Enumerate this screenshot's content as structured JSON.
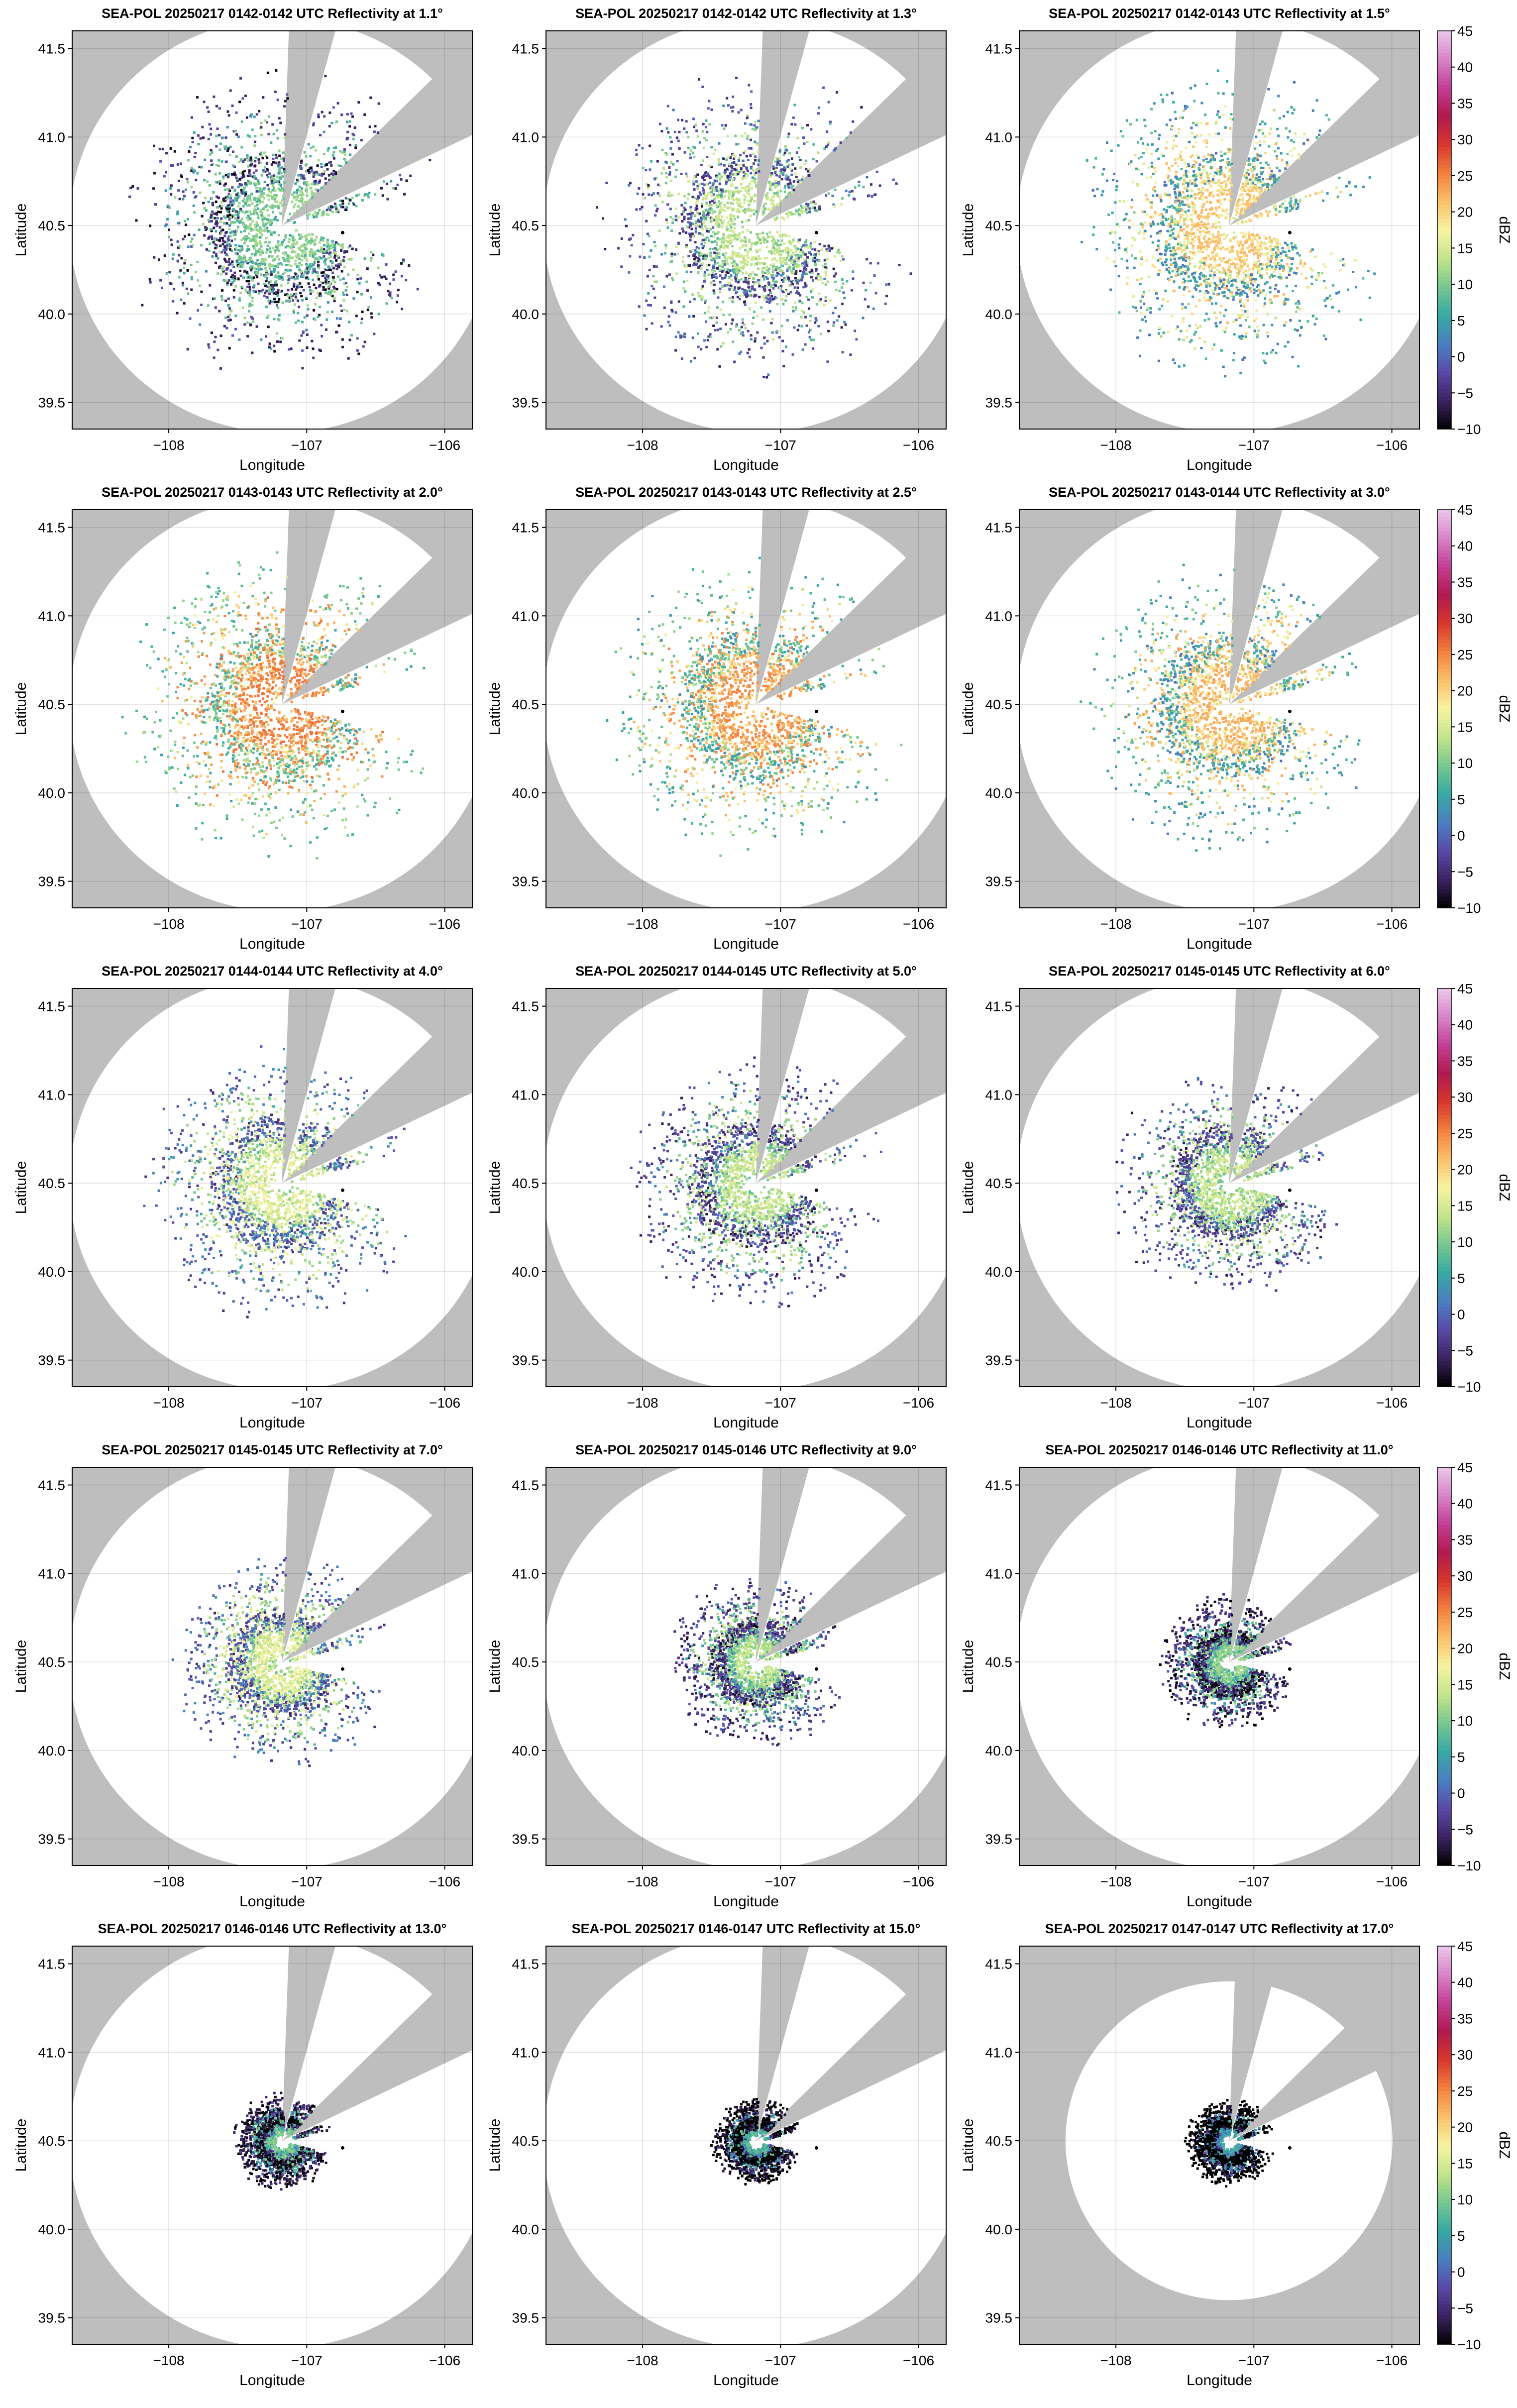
{
  "figure": {
    "colorbar_label": "dBZ",
    "colormap": [
      "#000000",
      "#3d2364",
      "#5a4aa8",
      "#4a7fc0",
      "#38a9a4",
      "#76c78f",
      "#c4e58a",
      "#f7f3a3",
      "#fbc06a",
      "#f2803f",
      "#d8362c",
      "#b01a4f",
      "#c23f95",
      "#d884c7",
      "#ecc7ec"
    ],
    "outside_range_color": "#bebebe",
    "radar_site": {
      "lon": -107.18,
      "lat": 40.5
    },
    "marker": {
      "lon": -106.74,
      "lat": 40.46
    }
  },
  "chart_data": [
    {
      "type": "heatmap",
      "title": "SEA-POL 20250217 0142-0142 UTC Reflectivity at 1.1°",
      "xlabel": "Longitude",
      "ylabel": "Latitude",
      "xlim": [
        -108.7,
        -105.8
      ],
      "ylim": [
        39.35,
        41.6
      ],
      "xticks": [
        "−108",
        "−107",
        "−106"
      ],
      "yticks": [
        "39.5",
        "40.0",
        "40.5",
        "41.0",
        "41.5"
      ],
      "colorbar": false,
      "range_km": 130,
      "blocked_sectors_deg": [
        [
          2,
          15
        ],
        [
          45,
          64
        ]
      ],
      "max_dbz": 12
    },
    {
      "type": "heatmap",
      "title": "SEA-POL 20250217 0142-0142 UTC Reflectivity at 1.3°",
      "xlabel": "Longitude",
      "ylabel": "Latitude",
      "xlim": [
        -108.7,
        -105.8
      ],
      "ylim": [
        39.35,
        41.6
      ],
      "xticks": [
        "−108",
        "−107",
        "−106"
      ],
      "yticks": [
        "39.5",
        "40.0",
        "40.5",
        "41.0",
        "41.5"
      ],
      "colorbar": false,
      "range_km": 130,
      "blocked_sectors_deg": [
        [
          2,
          15
        ],
        [
          45,
          64
        ]
      ],
      "max_dbz": 15
    },
    {
      "type": "heatmap",
      "title": "SEA-POL 20250217 0142-0143 UTC Reflectivity at 1.5°",
      "xlabel": "Longitude",
      "ylabel": "Latitude",
      "xlim": [
        -108.7,
        -105.8
      ],
      "ylim": [
        39.35,
        41.6
      ],
      "xticks": [
        "−108",
        "−107",
        "−106"
      ],
      "yticks": [
        "39.5",
        "40.0",
        "40.5",
        "41.0",
        "41.5"
      ],
      "colorbar": true,
      "colorbar_ticks": [
        45,
        40,
        35,
        30,
        25,
        20,
        15,
        10,
        5,
        0,
        -5,
        -10
      ],
      "range_km": 130,
      "blocked_sectors_deg": [
        [
          2,
          15
        ],
        [
          45,
          64
        ]
      ],
      "max_dbz": 22
    },
    {
      "type": "heatmap",
      "title": "SEA-POL 20250217 0143-0143 UTC Reflectivity at 2.0°",
      "xlabel": "Longitude",
      "ylabel": "Latitude",
      "xlim": [
        -108.7,
        -105.8
      ],
      "ylim": [
        39.35,
        41.6
      ],
      "xticks": [
        "−108",
        "−107",
        "−106"
      ],
      "yticks": [
        "39.5",
        "40.0",
        "40.5",
        "41.0",
        "41.5"
      ],
      "colorbar": false,
      "range_km": 130,
      "blocked_sectors_deg": [
        [
          2,
          15
        ],
        [
          45,
          64
        ]
      ],
      "max_dbz": 26
    },
    {
      "type": "heatmap",
      "title": "SEA-POL 20250217 0143-0143 UTC Reflectivity at 2.5°",
      "xlabel": "Longitude",
      "ylabel": "Latitude",
      "xlim": [
        -108.7,
        -105.8
      ],
      "ylim": [
        39.35,
        41.6
      ],
      "xticks": [
        "−108",
        "−107",
        "−106"
      ],
      "yticks": [
        "39.5",
        "40.0",
        "40.5",
        "41.0",
        "41.5"
      ],
      "colorbar": false,
      "range_km": 130,
      "blocked_sectors_deg": [
        [
          2,
          15
        ],
        [
          45,
          64
        ]
      ],
      "max_dbz": 25
    },
    {
      "type": "heatmap",
      "title": "SEA-POL 20250217 0143-0144 UTC Reflectivity at 3.0°",
      "xlabel": "Longitude",
      "ylabel": "Latitude",
      "xlim": [
        -108.7,
        -105.8
      ],
      "ylim": [
        39.35,
        41.6
      ],
      "xticks": [
        "−108",
        "−107",
        "−106"
      ],
      "yticks": [
        "39.5",
        "40.0",
        "40.5",
        "41.0",
        "41.5"
      ],
      "colorbar": true,
      "colorbar_ticks": [
        45,
        40,
        35,
        30,
        25,
        20,
        15,
        10,
        5,
        0,
        -5,
        -10
      ],
      "range_km": 130,
      "blocked_sectors_deg": [
        [
          2,
          15
        ],
        [
          45,
          64
        ]
      ],
      "max_dbz": 23
    },
    {
      "type": "heatmap",
      "title": "SEA-POL 20250217 0144-0144 UTC Reflectivity at 4.0°",
      "xlabel": "Longitude",
      "ylabel": "Latitude",
      "xlim": [
        -108.7,
        -105.8
      ],
      "ylim": [
        39.35,
        41.6
      ],
      "xticks": [
        "−108",
        "−107",
        "−106"
      ],
      "yticks": [
        "39.5",
        "40.0",
        "40.5",
        "41.0",
        "41.5"
      ],
      "colorbar": false,
      "range_km": 130,
      "blocked_sectors_deg": [
        [
          2,
          15
        ],
        [
          45,
          64
        ]
      ],
      "max_dbz": 17
    },
    {
      "type": "heatmap",
      "title": "SEA-POL 20250217 0144-0145 UTC Reflectivity at 5.0°",
      "xlabel": "Longitude",
      "ylabel": "Latitude",
      "xlim": [
        -108.7,
        -105.8
      ],
      "ylim": [
        39.35,
        41.6
      ],
      "xticks": [
        "−108",
        "−107",
        "−106"
      ],
      "yticks": [
        "39.5",
        "40.0",
        "40.5",
        "41.0",
        "41.5"
      ],
      "colorbar": false,
      "range_km": 130,
      "blocked_sectors_deg": [
        [
          2,
          15
        ],
        [
          45,
          64
        ]
      ],
      "max_dbz": 15
    },
    {
      "type": "heatmap",
      "title": "SEA-POL 20250217 0145-0145 UTC Reflectivity at 6.0°",
      "xlabel": "Longitude",
      "ylabel": "Latitude",
      "xlim": [
        -108.7,
        -105.8
      ],
      "ylim": [
        39.35,
        41.6
      ],
      "xticks": [
        "−108",
        "−107",
        "−106"
      ],
      "yticks": [
        "39.5",
        "40.0",
        "40.5",
        "41.0",
        "41.5"
      ],
      "colorbar": true,
      "colorbar_ticks": [
        45,
        40,
        35,
        30,
        25,
        20,
        15,
        10,
        5,
        0,
        -5,
        -10
      ],
      "range_km": 130,
      "blocked_sectors_deg": [
        [
          2,
          15
        ],
        [
          45,
          64
        ]
      ],
      "max_dbz": 15
    },
    {
      "type": "heatmap",
      "title": "SEA-POL 20250217 0145-0145 UTC Reflectivity at 7.0°",
      "xlabel": "Longitude",
      "ylabel": "Latitude",
      "xlim": [
        -108.7,
        -105.8
      ],
      "ylim": [
        39.35,
        41.6
      ],
      "xticks": [
        "−108",
        "−107",
        "−106"
      ],
      "yticks": [
        "39.5",
        "40.0",
        "40.5",
        "41.0",
        "41.5"
      ],
      "colorbar": false,
      "range_km": 130,
      "blocked_sectors_deg": [
        [
          2,
          15
        ],
        [
          45,
          64
        ]
      ],
      "max_dbz": 17
    },
    {
      "type": "heatmap",
      "title": "SEA-POL 20250217 0145-0146 UTC Reflectivity at 9.0°",
      "xlabel": "Longitude",
      "ylabel": "Latitude",
      "xlim": [
        -108.7,
        -105.8
      ],
      "ylim": [
        39.35,
        41.6
      ],
      "xticks": [
        "−108",
        "−107",
        "−106"
      ],
      "yticks": [
        "39.5",
        "40.0",
        "40.5",
        "41.0",
        "41.5"
      ],
      "colorbar": false,
      "range_km": 130,
      "blocked_sectors_deg": [
        [
          2,
          15
        ],
        [
          45,
          64
        ]
      ],
      "max_dbz": 14
    },
    {
      "type": "heatmap",
      "title": "SEA-POL 20250217 0146-0146 UTC Reflectivity at 11.0°",
      "xlabel": "Longitude",
      "ylabel": "Latitude",
      "xlim": [
        -108.7,
        -105.8
      ],
      "ylim": [
        39.35,
        41.6
      ],
      "xticks": [
        "−108",
        "−107",
        "−106"
      ],
      "yticks": [
        "39.5",
        "40.0",
        "40.5",
        "41.0",
        "41.5"
      ],
      "colorbar": true,
      "colorbar_ticks": [
        45,
        40,
        35,
        30,
        25,
        20,
        15,
        10,
        5,
        0,
        -5,
        -10
      ],
      "range_km": 130,
      "blocked_sectors_deg": [
        [
          2,
          15
        ],
        [
          45,
          64
        ]
      ],
      "max_dbz": 12
    },
    {
      "type": "heatmap",
      "title": "SEA-POL 20250217 0146-0146 UTC Reflectivity at 13.0°",
      "xlabel": "Longitude",
      "ylabel": "Latitude",
      "xlim": [
        -108.7,
        -105.8
      ],
      "ylim": [
        39.35,
        41.6
      ],
      "xticks": [
        "−108",
        "−107",
        "−106"
      ],
      "yticks": [
        "39.5",
        "40.0",
        "40.5",
        "41.0",
        "41.5"
      ],
      "colorbar": false,
      "range_km": 130,
      "blocked_sectors_deg": [
        [
          2,
          15
        ],
        [
          45,
          64
        ]
      ],
      "max_dbz": 11
    },
    {
      "type": "heatmap",
      "title": "SEA-POL 20250217 0146-0147 UTC Reflectivity at 15.0°",
      "xlabel": "Longitude",
      "ylabel": "Latitude",
      "xlim": [
        -108.7,
        -105.8
      ],
      "ylim": [
        39.35,
        41.6
      ],
      "xticks": [
        "−108",
        "−107",
        "−106"
      ],
      "yticks": [
        "39.5",
        "40.0",
        "40.5",
        "41.0",
        "41.5"
      ],
      "colorbar": false,
      "range_km": 130,
      "blocked_sectors_deg": [
        [
          2,
          15
        ],
        [
          45,
          64
        ]
      ],
      "max_dbz": 9
    },
    {
      "type": "heatmap",
      "title": "SEA-POL 20250217 0147-0147 UTC Reflectivity at 17.0°",
      "xlabel": "Longitude",
      "ylabel": "Latitude",
      "xlim": [
        -108.7,
        -105.8
      ],
      "ylim": [
        39.35,
        41.6
      ],
      "xticks": [
        "−108",
        "−107",
        "−106"
      ],
      "yticks": [
        "39.5",
        "40.0",
        "40.5",
        "41.0",
        "41.5"
      ],
      "colorbar": true,
      "colorbar_ticks": [
        45,
        40,
        35,
        30,
        25,
        20,
        15,
        10,
        5,
        0,
        -5,
        -10
      ],
      "range_km": 100,
      "blocked_sectors_deg": [
        [
          2,
          15
        ],
        [
          45,
          64
        ]
      ],
      "max_dbz": 7
    }
  ]
}
